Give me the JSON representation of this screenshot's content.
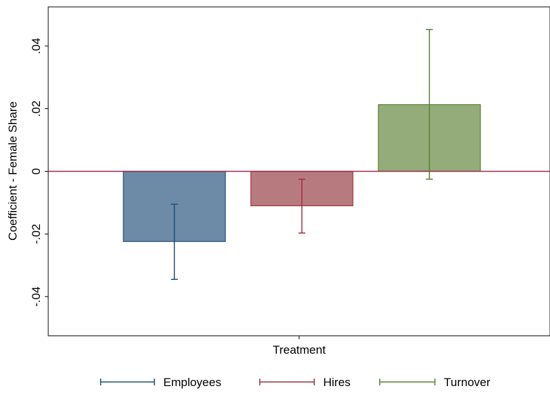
{
  "chart_data": {
    "type": "bar",
    "title": "",
    "ylabel": "Coefficient - Female Share",
    "xlabel": "Treatment",
    "ylim": [
      -0.0525,
      0.0525
    ],
    "yticks": [
      -0.04,
      -0.02,
      0,
      0.02,
      0.04
    ],
    "ytick_labels": [
      "-.04",
      "-.02",
      "0",
      ".02",
      ".04"
    ],
    "grid": false,
    "legend_position": "bottom",
    "reference_line": {
      "y": 0,
      "color": "#9a2a4a"
    },
    "series": [
      {
        "name": "Employees",
        "value": -0.0224,
        "ci_low": -0.0345,
        "ci_high": -0.0105,
        "fill": "#6d8aa6",
        "stroke": "#1f4e79",
        "error_color": "#1f4e79"
      },
      {
        "name": "Hires",
        "value": -0.011,
        "ci_low": -0.0197,
        "ci_high": -0.0025,
        "fill": "#b77b7f",
        "stroke": "#a0303c",
        "error_color": "#9c3040"
      },
      {
        "name": "Turnover",
        "value": 0.0213,
        "ci_low": -0.0025,
        "ci_high": 0.0453,
        "fill": "#93ac7a",
        "stroke": "#5a7d34",
        "error_color": "#5a7d34"
      }
    ]
  }
}
